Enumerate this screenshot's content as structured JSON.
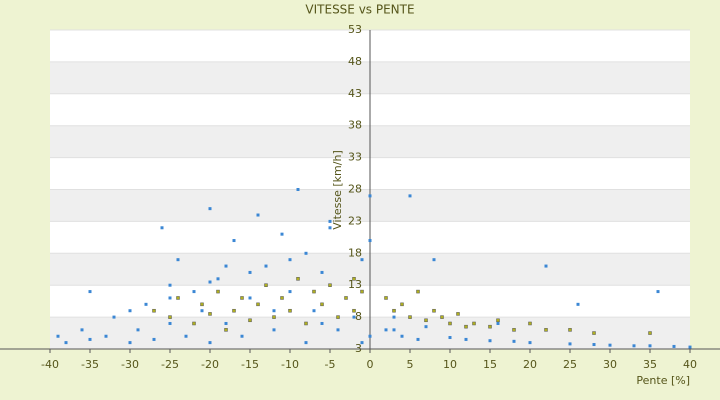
{
  "chart_data": {
    "type": "scatter",
    "title": "VITESSE vs PENTE",
    "x_label": "Pente [%]",
    "y_label": "Vitesse [km/h]",
    "xlim": [
      -40,
      40
    ],
    "ylim": [
      3,
      53
    ],
    "xticks": [
      -40,
      -35,
      -30,
      -25,
      -20,
      -15,
      -10,
      -5,
      0,
      5,
      10,
      15,
      20,
      25,
      30,
      35,
      40
    ],
    "yticks": [
      3,
      8,
      13,
      18,
      23,
      28,
      33,
      38,
      43,
      48,
      53
    ],
    "grid": true,
    "series": [
      {
        "color": "#3b87d4",
        "x": [
          -38,
          -36,
          -35,
          -33,
          -32,
          -30,
          -29,
          -28,
          -27,
          -26,
          -25,
          -24,
          -23,
          -22,
          -21,
          -20,
          -20,
          -19,
          -18,
          -17,
          -16,
          -15,
          -14,
          -13,
          -12,
          -11,
          -10,
          -9,
          -8,
          -8,
          -7,
          -6,
          -5,
          -4,
          -3,
          -2,
          -1,
          -1,
          -30,
          -25,
          -18,
          -12,
          -6,
          -35,
          -39,
          -25,
          -20,
          -15,
          -10,
          -5,
          0,
          0,
          0,
          2,
          3,
          4,
          5,
          6,
          8,
          10,
          12,
          15,
          18,
          20,
          22,
          25,
          28,
          30,
          33,
          35,
          36,
          38,
          40,
          26,
          16,
          7,
          3
        ],
        "values": [
          4,
          6,
          4.5,
          5,
          8,
          4,
          6,
          10,
          4.5,
          22,
          7,
          17,
          5,
          12,
          9,
          4,
          25,
          14,
          7,
          20,
          5,
          11,
          24,
          16,
          6,
          21,
          12,
          28,
          18,
          4,
          9,
          15,
          23,
          6,
          11,
          8,
          4,
          17,
          9,
          13,
          16,
          9,
          7,
          12,
          5,
          11,
          13.5,
          15,
          17,
          22,
          5,
          20,
          27,
          6,
          8,
          5,
          27,
          4.5,
          17,
          4.8,
          4.5,
          4.3,
          4.2,
          4,
          16,
          3.8,
          3.7,
          3.6,
          3.5,
          3.5,
          12,
          3.4,
          3.3,
          10,
          7,
          6.5,
          6
        ]
      },
      {
        "color": "#b0b020",
        "x": [
          -27,
          -25,
          -24,
          -22,
          -21,
          -20,
          -19,
          -18,
          -17,
          -16,
          -15,
          -14,
          -13,
          -12,
          -11,
          -10,
          -9,
          -8,
          -7,
          -6,
          -5,
          -4,
          -3,
          -2,
          -1,
          -2,
          2,
          3,
          4,
          5,
          6,
          7,
          8,
          9,
          10,
          11,
          12,
          13,
          15,
          16,
          18,
          20,
          22,
          25,
          28,
          35
        ],
        "values": [
          9,
          8,
          11,
          7,
          10,
          8.5,
          12,
          6,
          9,
          11,
          7.5,
          10,
          13,
          8,
          11,
          9,
          14,
          7,
          12,
          10,
          13,
          8,
          11,
          9,
          12,
          14,
          11,
          9,
          10,
          8,
          12,
          7.5,
          9,
          8,
          7,
          8.5,
          6.5,
          7,
          6.5,
          7.5,
          6,
          7,
          6,
          6,
          5.5,
          5.5
        ]
      }
    ]
  }
}
